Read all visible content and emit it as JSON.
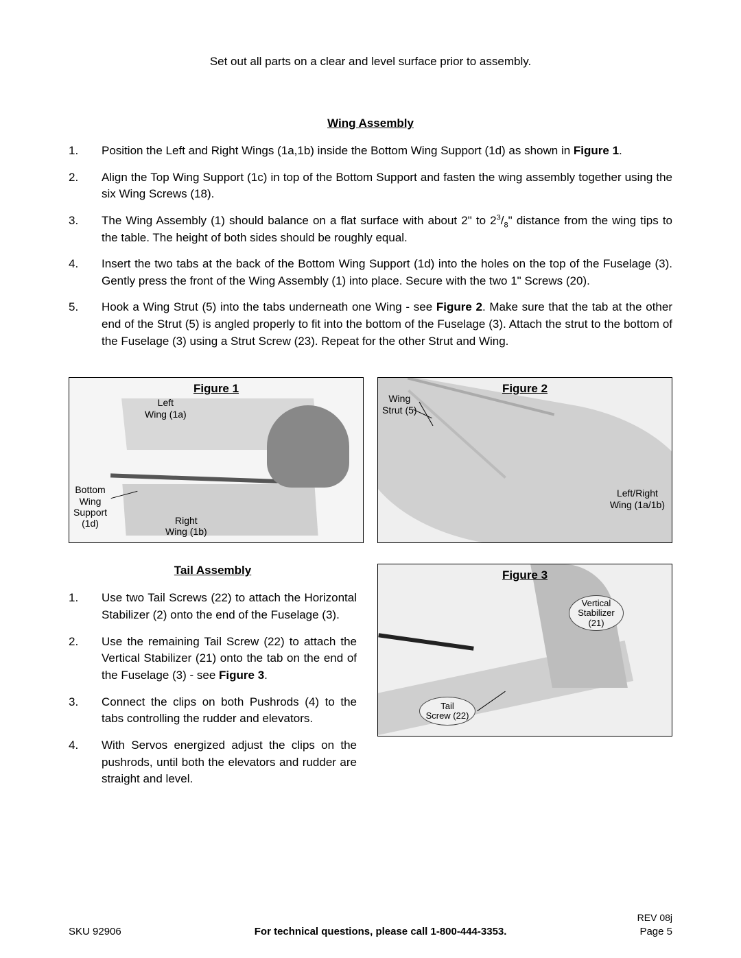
{
  "intro": "Set out all parts on a clear and level surface prior to assembly.",
  "sections": {
    "wing": {
      "title": "Wing Assembly",
      "steps": [
        "Position the Left and Right Wings (1a,1b) inside the Bottom Wing Support (1d) as shown in <b>Figure 1</b>.",
        "Align the Top Wing Support (1c) in top of the Bottom Support and fasten the wing assembly together using the six Wing Screws (18).",
        "The Wing Assembly (1) should balance on a flat surface with about 2\" to 2<sup>3</sup>/<sub>8</sub>\" distance from the wing tips to the table.  The height of both sides should be roughly equal.",
        "Insert the two tabs at the back of the Bottom Wing Support (1d) into the holes on the top of the Fuselage (3).  Gently press the front of the Wing Assembly (1) into place.  Secure with the two 1\" Screws (20).",
        "Hook a Wing Strut (5) into the tabs underneath one Wing - see <b>Figure 2</b>.  Make sure that the tab at the other end of the Strut (5) is angled properly to fit into the bottom of the Fuselage (3).  Attach the strut to the bottom of the Fuselage (3) using a Strut Screw (23).  Repeat for the other Strut and Wing."
      ]
    },
    "tail": {
      "title": "Tail Assembly",
      "steps": [
        "Use two Tail Screws (22) to attach the Horizontal Stabilizer (2) onto the end of the Fuselage (3).",
        "Use the remaining Tail Screw (22) to attach the Vertical Stabilizer (21) onto the tab on the end of the Fuselage (3) - see <b>Figure 3</b>.",
        "Connect the clips on both Pushrods (4) to the tabs controlling the rudder and elevators.",
        "With Servos energized adjust the clips on the pushrods, until both the elevators and rudder are straight and level."
      ]
    }
  },
  "figures": {
    "fig1": {
      "title": "Figure 1",
      "labels": {
        "leftWing": "Left\nWing (1a)",
        "rightWing": "Right\nWing (1b)",
        "bottomSupport": "Bottom\nWing\nSupport\n(1d)"
      }
    },
    "fig2": {
      "title": "Figure 2",
      "labels": {
        "strut": "Wing\nStrut (5)",
        "wing": "Left/Right\nWing (1a/1b)"
      }
    },
    "fig3": {
      "title": "Figure 3",
      "labels": {
        "vstab": "Vertical\nStabilizer\n(21)",
        "tscrew": "Tail\nScrew (22)"
      }
    }
  },
  "footer": {
    "rev": "REV 08j",
    "sku": "SKU 92906",
    "mid": "For technical questions, please call 1-800-444-3353.",
    "page": "Page 5"
  }
}
